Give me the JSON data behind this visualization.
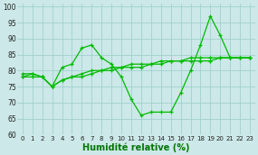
{
  "xlabel": "Humidité relative (%)",
  "bg_color": "#cce8e8",
  "grid_color": "#99cccc",
  "line_color": "#00bb00",
  "xlim": [
    -0.5,
    23.5
  ],
  "ylim": [
    60,
    101
  ],
  "yticks": [
    60,
    65,
    70,
    75,
    80,
    85,
    90,
    95,
    100
  ],
  "xticks": [
    0,
    1,
    2,
    3,
    4,
    5,
    6,
    7,
    8,
    9,
    10,
    11,
    12,
    13,
    14,
    15,
    16,
    17,
    18,
    19,
    20,
    21,
    22,
    23
  ],
  "series1": [
    78,
    79,
    78,
    75,
    81,
    82,
    87,
    88,
    84,
    82,
    78,
    71,
    66,
    67,
    67,
    67,
    73,
    80,
    88,
    97,
    91,
    84,
    84,
    84
  ],
  "series2": [
    78,
    78,
    78,
    75,
    77,
    78,
    79,
    80,
    80,
    81,
    81,
    82,
    82,
    82,
    83,
    83,
    83,
    84,
    84,
    84,
    84,
    84,
    84,
    84
  ],
  "series3": [
    79,
    79,
    78,
    75,
    77,
    78,
    78,
    79,
    80,
    80,
    81,
    81,
    81,
    82,
    82,
    83,
    83,
    83,
    83,
    83,
    84,
    84,
    84,
    84
  ],
  "xlabel_color": "#007700",
  "xlabel_fontsize": 7,
  "tick_fontsize": 5,
  "linewidth": 0.9,
  "marker_size": 3.5
}
